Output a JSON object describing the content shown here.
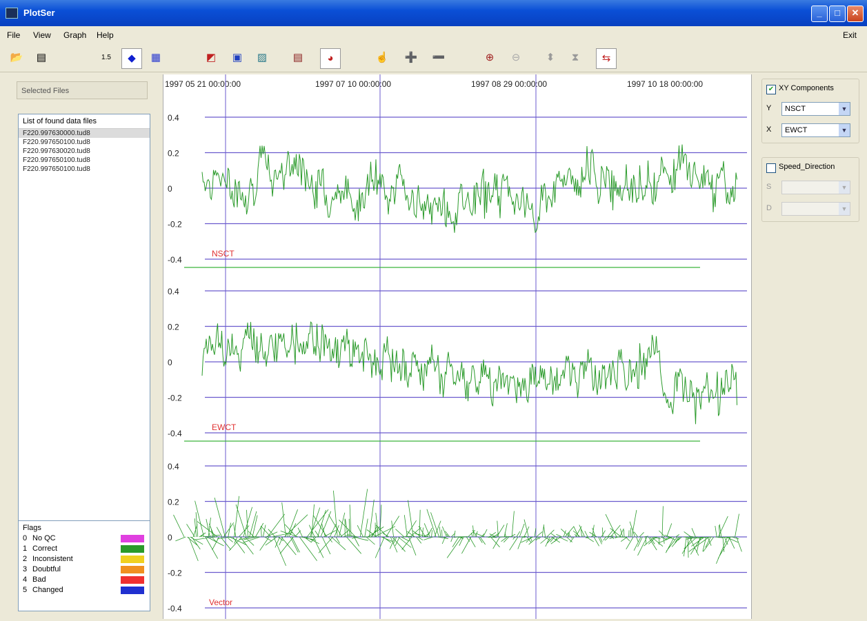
{
  "window": {
    "title": "PlotSer"
  },
  "menu": {
    "items": [
      "File",
      "View",
      "Graph",
      "Help"
    ],
    "right": "Exit"
  },
  "toolbar": {
    "icons": [
      "open-folder-icon",
      "file-icon",
      "table-icon",
      "diamond-icon",
      "grid-icon",
      "chart-icon",
      "legend-icon",
      "image-icon",
      "stats-icon",
      "color-icon",
      "cursor-icon",
      "add-icon",
      "remove-icon",
      "zoom-in-icon",
      "zoom-out-icon",
      "move-icon",
      "fit-icon",
      "reset-icon"
    ]
  },
  "left_panel": {
    "selected_files_label": "Selected Files",
    "list_header": "List of found data files",
    "files": [
      "F220.997630000.tud8",
      "F220.997650100.tud8",
      "F220.997630020.tud8",
      "F220.997650100.tud8",
      "F220.997650100.tud8"
    ],
    "flags_title": "Flags",
    "flags": [
      {
        "code": "0",
        "label": "No QC",
        "color": "#e040e0"
      },
      {
        "code": "1",
        "label": "Correct",
        "color": "#2a9a2a"
      },
      {
        "code": "2",
        "label": "Inconsistent",
        "color": "#f0d020"
      },
      {
        "code": "3",
        "label": "Doubtful",
        "color": "#f09020"
      },
      {
        "code": "4",
        "label": "Bad",
        "color": "#f03030"
      },
      {
        "code": "5",
        "label": "Changed",
        "color": "#2030d0"
      }
    ]
  },
  "plot": {
    "top_dates": [
      "1997 05 21 00:00:00",
      "1997 07 10 00:00:00",
      "1997 08 29 00:00:00",
      "1997 10 18 00:00:00"
    ],
    "panels": [
      {
        "name": "NSCT",
        "ticks": [
          "0.4",
          "0.2",
          "0",
          "-0.2",
          "-0.4"
        ]
      },
      {
        "name": "EWCT",
        "ticks": [
          "0.4",
          "0.2",
          "0",
          "-0.2",
          "-0.4"
        ]
      },
      {
        "name": "Vector",
        "ticks": [
          "0.4",
          "0.2",
          "0",
          "-0.2",
          "-0.4"
        ]
      }
    ],
    "series_color": "#2a9a2a",
    "label_color": "#e03030",
    "grid_color": "#6a5acd"
  },
  "right_panel": {
    "xy_label": "XY Components",
    "y_label": "Y",
    "y_value": "NSCT",
    "x_label": "X",
    "x_value": "EWCT",
    "speed_label": "Speed_Direction",
    "s_label": "S",
    "d_label": "D"
  }
}
